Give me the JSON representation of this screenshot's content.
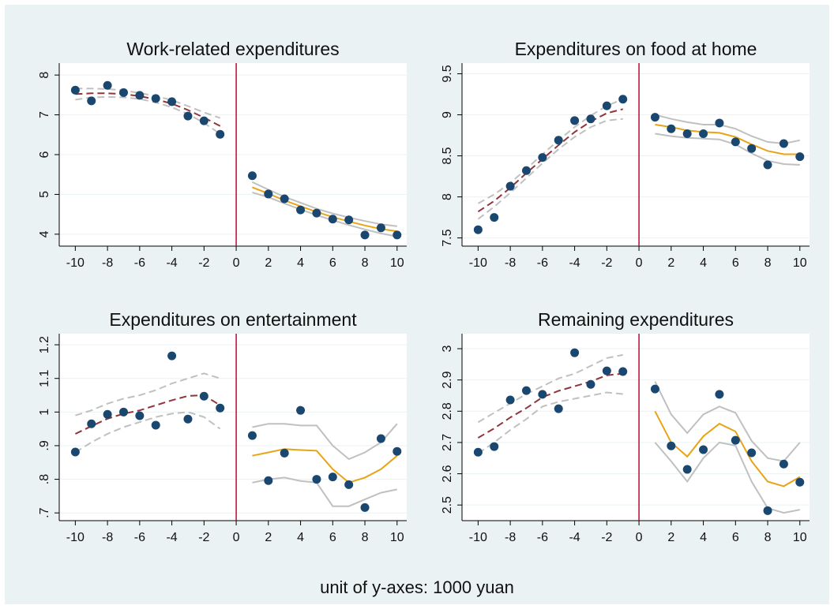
{
  "note": "unit of y-axes: 1000 yuan",
  "chart_data": [
    {
      "type": "scatter",
      "title": "Work-related expenditures",
      "x": [
        -10,
        -9,
        -8,
        -7,
        -6,
        -5,
        -4,
        -3,
        -2,
        -1,
        1,
        2,
        3,
        4,
        5,
        6,
        7,
        8,
        9,
        10
      ],
      "xlim": [
        -11,
        10.6
      ],
      "xticks": [
        -10,
        -8,
        -6,
        -4,
        -2,
        0,
        2,
        4,
        6,
        8,
        10
      ],
      "ylim": [
        3.7,
        8.3
      ],
      "yticks": [
        4,
        5,
        6,
        7,
        8
      ],
      "grid": true,
      "cutoff": 0,
      "cutoff_color": "#c10534",
      "series": [
        {
          "mode": "lines",
          "dash": true,
          "color": "#c0c0c0",
          "values": [
            7.38,
            7.44,
            7.45,
            7.44,
            7.4,
            7.31,
            7.19,
            7.02,
            6.8,
            6.52,
            null,
            null,
            null,
            null,
            null,
            null,
            null,
            null,
            null,
            null
          ]
        },
        {
          "mode": "lines",
          "dash": true,
          "color": "#c0c0c0",
          "values": [
            7.66,
            7.66,
            7.65,
            7.61,
            7.55,
            7.47,
            7.37,
            7.22,
            7.06,
            6.92,
            null,
            null,
            null,
            null,
            null,
            null,
            null,
            null,
            null,
            null
          ]
        },
        {
          "mode": "lines",
          "dash": true,
          "color": "#90353b",
          "values": [
            7.52,
            7.54,
            7.54,
            7.52,
            7.47,
            7.39,
            7.28,
            7.12,
            6.93,
            6.72,
            null,
            null,
            null,
            null,
            null,
            null,
            null,
            null,
            null,
            null
          ]
        },
        {
          "mode": "lines",
          "dash": false,
          "color": "#c0c0c0",
          "values": [
            null,
            null,
            null,
            null,
            null,
            null,
            null,
            null,
            null,
            null,
            5.05,
            4.93,
            4.77,
            4.62,
            4.48,
            4.35,
            4.23,
            4.12,
            4.02,
            3.94
          ]
        },
        {
          "mode": "lines",
          "dash": false,
          "color": "#c0c0c0",
          "values": [
            null,
            null,
            null,
            null,
            null,
            null,
            null,
            null,
            null,
            null,
            5.31,
            5.12,
            4.94,
            4.79,
            4.64,
            4.52,
            4.42,
            4.33,
            4.25,
            4.2
          ]
        },
        {
          "mode": "lines",
          "dash": false,
          "color": "#e8a317",
          "values": [
            null,
            null,
            null,
            null,
            null,
            null,
            null,
            null,
            null,
            null,
            5.18,
            5.02,
            4.85,
            4.7,
            4.56,
            4.43,
            4.32,
            4.22,
            4.13,
            4.07
          ]
        },
        {
          "mode": "markers",
          "color": "#1a476f",
          "values": [
            7.62,
            7.35,
            7.74,
            7.56,
            7.49,
            7.41,
            7.33,
            6.97,
            6.85,
            6.51,
            5.47,
            5.01,
            4.89,
            4.61,
            4.53,
            4.38,
            4.36,
            3.98,
            4.16,
            3.98
          ]
        }
      ]
    },
    {
      "type": "scatter",
      "title": "Expenditures on food at home",
      "x": [
        -10,
        -9,
        -8,
        -7,
        -6,
        -5,
        -4,
        -3,
        -2,
        -1,
        1,
        2,
        3,
        4,
        5,
        6,
        7,
        8,
        9,
        10
      ],
      "xlim": [
        -11,
        10.6
      ],
      "xticks": [
        -10,
        -8,
        -6,
        -4,
        -2,
        0,
        2,
        4,
        6,
        8,
        10
      ],
      "ylim": [
        7.4,
        9.63
      ],
      "yticks": [
        7.5,
        8,
        8.5,
        9,
        9.5
      ],
      "grid": true,
      "cutoff": 0,
      "cutoff_color": "#c10534",
      "series": [
        {
          "mode": "lines",
          "dash": true,
          "color": "#c0c0c0",
          "values": [
            7.73,
            7.88,
            8.05,
            8.23,
            8.41,
            8.58,
            8.73,
            8.85,
            8.93,
            8.95,
            null,
            null,
            null,
            null,
            null,
            null,
            null,
            null,
            null,
            null
          ]
        },
        {
          "mode": "lines",
          "dash": true,
          "color": "#c0c0c0",
          "values": [
            7.92,
            8.03,
            8.17,
            8.34,
            8.52,
            8.69,
            8.85,
            8.99,
            9.11,
            9.19,
            null,
            null,
            null,
            null,
            null,
            null,
            null,
            null,
            null,
            null
          ]
        },
        {
          "mode": "lines",
          "dash": true,
          "color": "#90353b",
          "values": [
            7.82,
            7.95,
            8.11,
            8.29,
            8.46,
            8.63,
            8.79,
            8.92,
            9.02,
            9.07,
            null,
            null,
            null,
            null,
            null,
            null,
            null,
            null,
            null,
            null
          ]
        },
        {
          "mode": "lines",
          "dash": false,
          "color": "#c0c0c0",
          "values": [
            null,
            null,
            null,
            null,
            null,
            null,
            null,
            null,
            null,
            null,
            8.77,
            8.74,
            8.72,
            8.71,
            8.7,
            8.64,
            8.53,
            8.44,
            8.4,
            8.39
          ]
        },
        {
          "mode": "lines",
          "dash": false,
          "color": "#c0c0c0",
          "values": [
            null,
            null,
            null,
            null,
            null,
            null,
            null,
            null,
            null,
            null,
            9.0,
            8.95,
            8.91,
            8.88,
            8.88,
            8.83,
            8.74,
            8.67,
            8.65,
            8.69
          ]
        },
        {
          "mode": "lines",
          "dash": false,
          "color": "#e8a317",
          "values": [
            null,
            null,
            null,
            null,
            null,
            null,
            null,
            null,
            null,
            null,
            8.88,
            8.85,
            8.81,
            8.79,
            8.78,
            8.73,
            8.64,
            8.56,
            8.52,
            8.52
          ]
        },
        {
          "mode": "markers",
          "color": "#1a476f",
          "values": [
            7.6,
            7.75,
            8.13,
            8.32,
            8.48,
            8.69,
            8.93,
            8.95,
            9.11,
            9.19,
            8.97,
            8.83,
            8.77,
            8.77,
            8.9,
            8.67,
            8.59,
            8.39,
            8.65,
            8.49
          ]
        }
      ]
    },
    {
      "type": "scatter",
      "title": "Expenditures on entertainment",
      "x": [
        -10,
        -9,
        -8,
        -7,
        -6,
        -5,
        -4,
        -3,
        -2,
        -1,
        1,
        2,
        3,
        4,
        5,
        6,
        7,
        8,
        9,
        10
      ],
      "xlim": [
        -11,
        10.6
      ],
      "xticks": [
        -10,
        -8,
        -6,
        -4,
        -2,
        0,
        2,
        4,
        6,
        8,
        10
      ],
      "ylim": [
        0.677,
        1.233
      ],
      "yticks": [
        {
          "value": 0.7,
          "label": ".7"
        },
        {
          "value": 0.8,
          "label": ".8"
        },
        {
          "value": 0.9,
          "label": ".9"
        },
        1,
        1.1,
        1.2
      ],
      "grid": true,
      "cutoff": 0,
      "cutoff_color": "#c10534",
      "series": [
        {
          "mode": "lines",
          "dash": true,
          "color": "#c0c0c0",
          "values": [
            0.88,
            0.91,
            0.935,
            0.955,
            0.97,
            0.985,
            0.995,
            1.0,
            0.985,
            0.95,
            null,
            null,
            null,
            null,
            null,
            null,
            null,
            null,
            null,
            null
          ]
        },
        {
          "mode": "lines",
          "dash": true,
          "color": "#c0c0c0",
          "values": [
            0.99,
            1.005,
            1.025,
            1.04,
            1.05,
            1.065,
            1.085,
            1.1,
            1.115,
            1.1,
            null,
            null,
            null,
            null,
            null,
            null,
            null,
            null,
            null,
            null
          ]
        },
        {
          "mode": "lines",
          "dash": true,
          "color": "#90353b",
          "values": [
            0.935,
            0.958,
            0.98,
            0.995,
            1.005,
            1.02,
            1.035,
            1.048,
            1.05,
            1.02,
            null,
            null,
            null,
            null,
            null,
            null,
            null,
            null,
            null,
            null
          ]
        },
        {
          "mode": "lines",
          "dash": false,
          "color": "#c0c0c0",
          "values": [
            null,
            null,
            null,
            null,
            null,
            null,
            null,
            null,
            null,
            null,
            0.79,
            0.8,
            0.805,
            0.795,
            0.79,
            0.72,
            0.72,
            0.74,
            0.76,
            0.77
          ]
        },
        {
          "mode": "lines",
          "dash": false,
          "color": "#c0c0c0",
          "values": [
            null,
            null,
            null,
            null,
            null,
            null,
            null,
            null,
            null,
            null,
            0.955,
            0.965,
            0.965,
            0.96,
            0.96,
            0.9,
            0.86,
            0.88,
            0.91,
            0.965
          ]
        },
        {
          "mode": "lines",
          "dash": false,
          "color": "#e8a317",
          "values": [
            null,
            null,
            null,
            null,
            null,
            null,
            null,
            null,
            null,
            null,
            0.87,
            0.88,
            0.89,
            0.887,
            0.885,
            0.83,
            0.79,
            0.805,
            0.83,
            0.87
          ]
        },
        {
          "mode": "markers",
          "color": "#1a476f",
          "values": [
            0.881,
            0.965,
            0.993,
            1.0,
            0.989,
            0.961,
            1.167,
            0.979,
            1.047,
            1.012,
            0.93,
            0.796,
            0.878,
            1.005,
            0.8,
            0.807,
            0.784,
            0.716,
            0.921,
            0.883
          ]
        }
      ]
    },
    {
      "type": "scatter",
      "title": "Remaining expenditures",
      "x": [
        -10,
        -9,
        -8,
        -7,
        -6,
        -5,
        -4,
        -3,
        -2,
        -1,
        1,
        2,
        3,
        4,
        5,
        6,
        7,
        8,
        9,
        10
      ],
      "xlim": [
        -11,
        10.6
      ],
      "xticks": [
        -10,
        -8,
        -6,
        -4,
        -2,
        0,
        2,
        4,
        6,
        8,
        10
      ],
      "ylim": [
        2.45,
        3.048
      ],
      "yticks": [
        2.5,
        2.6,
        2.7,
        2.8,
        2.9,
        3
      ],
      "grid": true,
      "cutoff": 0,
      "cutoff_color": "#c10534",
      "series": [
        {
          "mode": "lines",
          "dash": true,
          "color": "#c0c0c0",
          "values": [
            2.665,
            2.7,
            2.74,
            2.775,
            2.815,
            2.83,
            2.84,
            2.85,
            2.86,
            2.855,
            null,
            null,
            null,
            null,
            null,
            null,
            null,
            null,
            null,
            null
          ]
        },
        {
          "mode": "lines",
          "dash": true,
          "color": "#c0c0c0",
          "values": [
            2.765,
            2.795,
            2.825,
            2.855,
            2.88,
            2.905,
            2.92,
            2.945,
            2.97,
            2.98,
            null,
            null,
            null,
            null,
            null,
            null,
            null,
            null,
            null,
            null
          ]
        },
        {
          "mode": "lines",
          "dash": true,
          "color": "#90353b",
          "values": [
            2.715,
            2.745,
            2.78,
            2.81,
            2.845,
            2.865,
            2.88,
            2.895,
            2.915,
            2.92,
            null,
            null,
            null,
            null,
            null,
            null,
            null,
            null,
            null,
            null
          ]
        },
        {
          "mode": "lines",
          "dash": false,
          "color": "#c0c0c0",
          "values": [
            null,
            null,
            null,
            null,
            null,
            null,
            null,
            null,
            null,
            null,
            2.7,
            2.64,
            2.575,
            2.65,
            2.7,
            2.69,
            2.575,
            2.49,
            2.475,
            2.485
          ]
        },
        {
          "mode": "lines",
          "dash": false,
          "color": "#c0c0c0",
          "values": [
            null,
            null,
            null,
            null,
            null,
            null,
            null,
            null,
            null,
            null,
            2.895,
            2.79,
            2.73,
            2.79,
            2.815,
            2.795,
            2.705,
            2.65,
            2.64,
            2.7
          ]
        },
        {
          "mode": "lines",
          "dash": false,
          "color": "#e8a317",
          "values": [
            null,
            null,
            null,
            null,
            null,
            null,
            null,
            null,
            null,
            null,
            2.8,
            2.7,
            2.655,
            2.72,
            2.76,
            2.735,
            2.64,
            2.575,
            2.56,
            2.59
          ]
        },
        {
          "mode": "markers",
          "color": "#1a476f",
          "values": [
            2.669,
            2.687,
            2.836,
            2.866,
            2.854,
            2.808,
            2.987,
            2.886,
            2.929,
            2.927,
            2.871,
            2.689,
            2.614,
            2.677,
            2.854,
            2.707,
            2.667,
            2.482,
            2.631,
            2.573
          ]
        }
      ]
    }
  ]
}
